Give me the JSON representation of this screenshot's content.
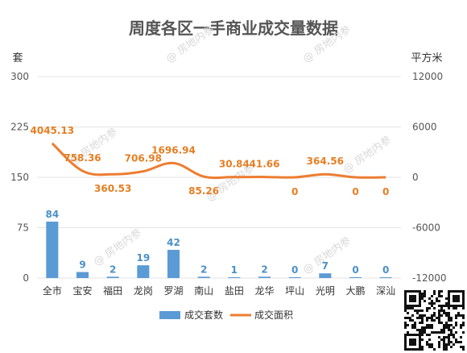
{
  "chart_data": {
    "type": "bar",
    "title": "周度各区一手商业成交量数据",
    "left_unit": "套",
    "right_unit": "平方米",
    "categories": [
      "全市",
      "宝安",
      "福田",
      "龙岗",
      "罗湖",
      "南山",
      "盐田",
      "龙华",
      "坪山",
      "光明",
      "大鹏",
      "深汕"
    ],
    "left_axis": {
      "min": 0,
      "max": 300,
      "ticks": [
        0,
        75,
        150,
        225,
        300
      ]
    },
    "right_axis": {
      "min": -12000,
      "max": 12000,
      "ticks": [
        -12000,
        -6000,
        0,
        6000,
        12000
      ]
    },
    "series": [
      {
        "name": "成交套数",
        "kind": "bar",
        "axis": "left",
        "color": "#5b9bd5",
        "values": [
          84,
          9,
          2,
          19,
          42,
          2,
          1,
          2,
          0,
          7,
          0,
          0
        ],
        "labels": [
          "84",
          "9",
          "2",
          "19",
          "42",
          "2",
          "1",
          "2",
          "0",
          "7",
          "0",
          "0"
        ]
      },
      {
        "name": "成交面积",
        "kind": "line",
        "axis": "right",
        "color": "#ed7d31",
        "values": [
          4045.13,
          758.36,
          360.53,
          706.98,
          1696.94,
          85.26,
          30.84,
          41.66,
          0,
          364.56,
          0,
          0
        ],
        "labels": [
          "4045.13",
          "758.36",
          "360.53",
          "706.98",
          "1696.94",
          "85.26",
          "30.84",
          "41.66",
          "0",
          "364.56",
          "0",
          "0"
        ]
      }
    ],
    "grid": true,
    "legend": "bottom"
  },
  "watermark": "@ 房地内参"
}
